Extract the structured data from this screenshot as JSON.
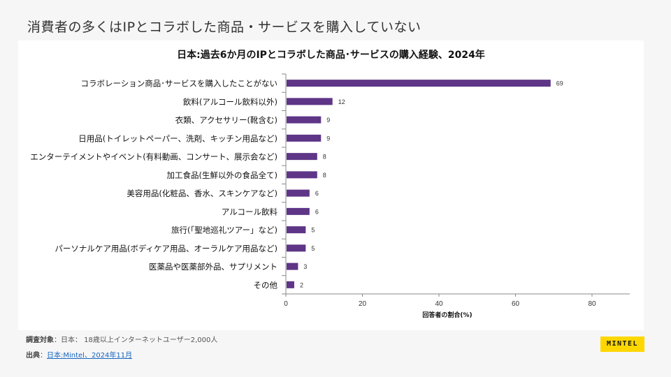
{
  "page": {
    "title": "消費者の多くはIPとコラボした商品・サービスを購入していない"
  },
  "chart_data": {
    "type": "bar",
    "orientation": "horizontal",
    "title": "日本:過去6か月のIPとコラボした商品･サービスの購入経験、2024年",
    "xlabel": "回答者の割合(%)",
    "ylabel": "",
    "xlim": [
      0,
      90
    ],
    "xticks": [
      0,
      20,
      40,
      60,
      80
    ],
    "grid": false,
    "legend": "none",
    "bar_color": "#5e3587",
    "categories": [
      "コラボレーション商品･サービスを購入したことがない",
      "飲料(アルコール飲料以外)",
      "衣類、アクセサリー(靴含む)",
      "日用品(トイレットペーパー、洗剤、キッチン用品など)",
      "エンターテイメントやイベント(有料動画、コンサート、展示会など)",
      "加工食品(生鮮以外の食品全て)",
      "美容用品(化粧品、香水、スキンケアなど)",
      "アルコール飲料",
      "旅行(「聖地巡礼ツアー」など)",
      "パーソナルケア用品(ボディケア用品、オーラルケア用品など)",
      "医薬品や医薬部外品、サプリメント",
      "その他"
    ],
    "values": [
      69,
      12,
      9,
      9,
      8,
      8,
      6,
      6,
      5,
      5,
      3,
      2
    ]
  },
  "notes": {
    "base_label": "調査対象",
    "base_text": "日本： 18歳以上インターネットユーザー2,000人",
    "source_label": "出典",
    "source_link": "日本:Mintel、2024年11月",
    "separator": "："
  },
  "brand": {
    "logo_text": "MINTEL",
    "logo_color": "#ffd700"
  }
}
